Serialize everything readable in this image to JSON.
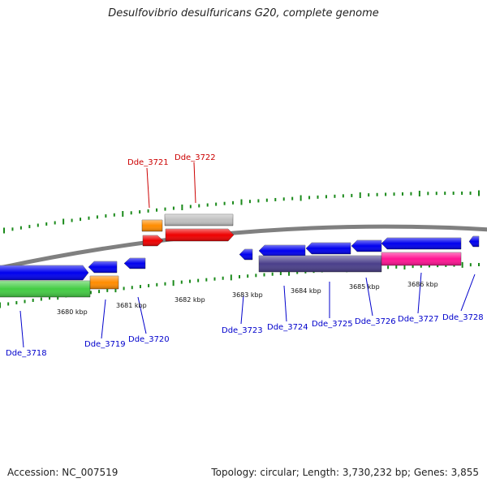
{
  "title": "Desulfovibrio desulfuricans G20, complete genome",
  "footer": {
    "accession": "Accession: NC_007519",
    "summary": "Topology: circular; Length: 3,730,232 bp; Genes: 3,855"
  },
  "colors": {
    "backbone": "#808080",
    "tick": "#1a8a1a",
    "label_forward": "#cc0000",
    "label_reverse": "#0000cc"
  },
  "scale_labels": [
    "3680 kbp",
    "3681 kbp",
    "3682 kbp",
    "3683 kbp",
    "3684 kbp",
    "3685 kbp",
    "3686 kbp"
  ],
  "genes": [
    {
      "id": "Dde_3718",
      "strand": "reverse",
      "color": "#0000ee",
      "function_color": "#44cc44"
    },
    {
      "id": "Dde_3719",
      "strand": "reverse",
      "color": "#0000ee",
      "function_color": "#ff8c00"
    },
    {
      "id": "Dde_3720",
      "strand": "reverse",
      "color": "#0000ee",
      "function_color": ""
    },
    {
      "id": "Dde_3721",
      "strand": "forward",
      "color": "#ee0000",
      "function_color": "#ff8c00"
    },
    {
      "id": "Dde_3722",
      "strand": "forward",
      "color": "#ee0000",
      "function_color": "#c0c0c0"
    },
    {
      "id": "Dde_3723",
      "strand": "reverse",
      "color": "#0000ee",
      "function_color": ""
    },
    {
      "id": "Dde_3724",
      "strand": "reverse",
      "color": "#0000ee",
      "function_color": "#4a3f8a"
    },
    {
      "id": "Dde_3725",
      "strand": "reverse",
      "color": "#0000ee",
      "function_color": "#4a3f8a"
    },
    {
      "id": "Dde_3726",
      "strand": "reverse",
      "color": "#0000ee",
      "function_color": "#4a3f8a"
    },
    {
      "id": "Dde_3727",
      "strand": "reverse",
      "color": "#0000ee",
      "function_color": "#ff1493"
    },
    {
      "id": "Dde_3728",
      "strand": "reverse",
      "color": "#0000ee",
      "function_color": ""
    }
  ]
}
